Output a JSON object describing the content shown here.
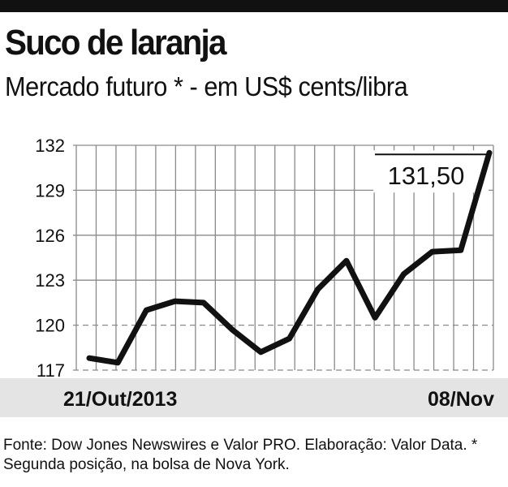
{
  "title": "Suco de laranja",
  "subtitle": "Mercado futuro * - em US$ cents/libra",
  "footer": "Fonte: Dow Jones Newswires e Valor PRO. Elaboração: Valor Data. * Segunda posição, na bolsa de Nova York.",
  "chart_data": {
    "type": "line",
    "title": "Suco de laranja",
    "subtitle": "Mercado futuro * - em US$ cents/libra",
    "x_first_label": "21/Out/2013",
    "x_last_label": "08/Nov",
    "ylim": [
      117,
      132
    ],
    "yticks": [
      117,
      120,
      123,
      126,
      129,
      132
    ],
    "grid": true,
    "dashed_reference_lines": [
      117,
      120
    ],
    "annotation": "131,50",
    "series": [
      {
        "values": [
          117.8,
          117.5,
          121.0,
          121.6,
          121.5,
          119.7,
          118.2,
          119.1,
          122.4,
          124.3,
          120.5,
          123.4,
          124.9,
          125.0,
          131.5
        ]
      }
    ]
  }
}
